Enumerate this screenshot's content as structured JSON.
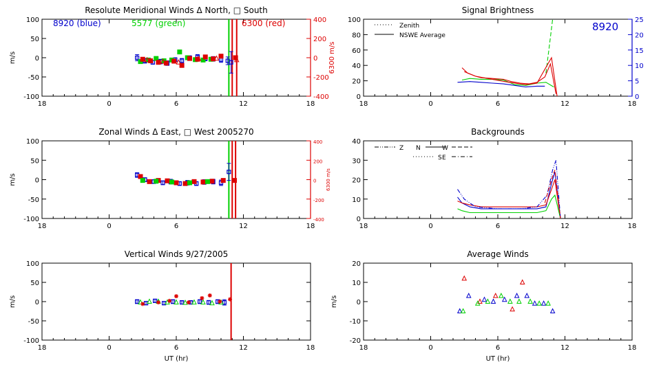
{
  "figure": {
    "colors": {
      "blue": "#0000cc",
      "green": "#00d000",
      "red": "#dd0000",
      "black": "#000000"
    }
  },
  "chart_data": [
    {
      "id": "meridional",
      "type": "scatter",
      "title": "Resolute Meridional Winds Δ North, □ South",
      "xlabel": "",
      "ylabel": "m/s",
      "ylabel_right": "6300 m/s",
      "xlim": [
        18,
        42
      ],
      "x_ticks": [
        18,
        24,
        30,
        36,
        42
      ],
      "x_tick_labels": [
        "18",
        "0",
        "6",
        "12",
        "18"
      ],
      "ylim": [
        -100,
        100
      ],
      "y_ticks": [
        -100,
        -50,
        0,
        50,
        100
      ],
      "y_tick_labels": [
        "-100",
        "-50",
        "0",
        "50",
        "100"
      ],
      "y2lim": [
        -400,
        400
      ],
      "y2_ticks": [
        -400,
        -200,
        0,
        200,
        400
      ],
      "y2_tick_labels": [
        "-400",
        "-200",
        "0",
        "200",
        "400"
      ],
      "annotations": [
        {
          "text": "8920 (blue)",
          "color": "blue"
        },
        {
          "text": "5577 (green)",
          "color": "green"
        },
        {
          "text": "6300 (red)",
          "color": "red"
        }
      ],
      "vlines": [
        {
          "x": 34.7,
          "color": "green"
        },
        {
          "x": 35.0,
          "color": "red"
        },
        {
          "x": 35.4,
          "color": "red"
        }
      ],
      "series": [
        {
          "color": "blue",
          "marker": "errorbar",
          "x": [
            26.5,
            27.2,
            27.9,
            28.6,
            29.2,
            29.9,
            30.5,
            31.2,
            31.9,
            32.6,
            33.3,
            34.0,
            34.6,
            34.9
          ],
          "y": [
            0,
            -8,
            -12,
            -10,
            -14,
            -5,
            -8,
            0,
            2,
            -2,
            -3,
            -5,
            -8,
            -12
          ],
          "err": [
            8,
            6,
            5,
            6,
            6,
            5,
            6,
            5,
            6,
            6,
            6,
            7,
            10,
            28
          ]
        },
        {
          "color": "green",
          "marker": "square",
          "x": [
            26.8,
            27.5,
            28.2,
            28.9,
            29.6,
            30.3,
            31.0,
            31.7,
            32.4,
            33.1
          ],
          "y": [
            -10,
            -6,
            -2,
            -8,
            -6,
            15,
            0,
            -5,
            -6,
            -4
          ]
        },
        {
          "color": "red",
          "marker": "square",
          "x": [
            27.0,
            27.7,
            28.4,
            29.1,
            29.8,
            30.5,
            31.2,
            31.9,
            32.6,
            33.3,
            34.0,
            35.3
          ],
          "y": [
            -4,
            -8,
            -12,
            -14,
            -9,
            -20,
            -2,
            -4,
            2,
            -3,
            4,
            0
          ]
        },
        {
          "color": "red",
          "marker": "triangle",
          "x": [
            27.4,
            28.8,
            30.2,
            32.0,
            33.6,
            35.4
          ],
          "y": [
            -6,
            -10,
            -12,
            -3,
            -2,
            -6
          ]
        }
      ]
    },
    {
      "id": "signal",
      "type": "line",
      "title": "Signal Brightness",
      "xlabel": "",
      "ylabel": "",
      "xlim": [
        18,
        42
      ],
      "x_ticks": [
        18,
        24,
        30,
        36,
        42
      ],
      "x_tick_labels": [
        "18",
        "0",
        "6",
        "12",
        "18"
      ],
      "ylim": [
        0,
        100
      ],
      "y_ticks": [
        0,
        20,
        40,
        60,
        80,
        100
      ],
      "y_tick_labels": [
        "0",
        "20",
        "40",
        "60",
        "80",
        "100"
      ],
      "y2lim": [
        0,
        25
      ],
      "y2_ticks": [
        0,
        5,
        10,
        15,
        20,
        25
      ],
      "y2_tick_labels": [
        "0",
        "5",
        "10",
        "15",
        "20",
        "25"
      ],
      "legend": [
        {
          "label": "Zenith",
          "style": "dotted"
        },
        {
          "label": "NSWE Average",
          "style": "solid"
        }
      ],
      "label_8920": "8920",
      "series": [
        {
          "color": "blue",
          "style": "solid",
          "x": [
            26.4,
            27.5,
            28.5,
            29.5,
            30.5,
            31.5,
            32.5,
            33.5,
            34.2
          ],
          "y": [
            18,
            19,
            18,
            17,
            16,
            14,
            12,
            13,
            13
          ]
        },
        {
          "color": "green",
          "style": "solid",
          "x": [
            26.8,
            27.5,
            28.5,
            29.5,
            30.5,
            31.0,
            31.5,
            32.5,
            33.5,
            34.3,
            35.0
          ],
          "y": [
            21,
            23,
            22,
            22,
            21,
            18,
            15,
            14,
            17,
            18,
            12
          ]
        },
        {
          "color": "green",
          "style": "dashed",
          "x": [
            34.3,
            34.6,
            34.9
          ],
          "y": [
            30,
            65,
            100
          ]
        },
        {
          "color": "red",
          "style": "solid",
          "x": [
            26.8,
            27.3,
            28.0,
            28.5,
            29.5,
            30.5,
            31.2,
            32.0,
            32.8,
            33.5,
            34.2,
            34.7,
            35.2
          ],
          "y": [
            37,
            30,
            26,
            24,
            23,
            22,
            19,
            17,
            16,
            18,
            25,
            42,
            3
          ]
        },
        {
          "color": "red",
          "style": "solid",
          "x": [
            27.0,
            28.0,
            29.5,
            31.0,
            32.5,
            33.5,
            34.4,
            34.8,
            35.3
          ],
          "y": [
            32,
            26,
            22,
            18,
            15,
            17,
            40,
            50,
            0
          ]
        }
      ]
    },
    {
      "id": "zonal",
      "type": "scatter",
      "title": "Zonal Winds Δ East, □ West 2005270",
      "xlabel": "",
      "ylabel": "m/s",
      "ylabel_right": "6300 m/s",
      "xlim": [
        18,
        42
      ],
      "x_ticks": [
        18,
        24,
        30,
        36,
        42
      ],
      "x_tick_labels": [
        "18",
        "0",
        "6",
        "12",
        "18"
      ],
      "ylim": [
        -100,
        100
      ],
      "y_ticks": [
        -100,
        -50,
        0,
        50,
        100
      ],
      "y_tick_labels": [
        "-100",
        "-50",
        "0",
        "50",
        "100"
      ],
      "y2lim": [
        -400,
        400
      ],
      "y2_ticks": [
        -400,
        -200,
        0,
        200,
        400
      ],
      "y2_tick_labels": [
        "-400",
        "-200",
        "0",
        "200",
        "400"
      ],
      "vlines": [
        {
          "x": 34.7,
          "color": "green"
        },
        {
          "x": 35.0,
          "color": "red"
        },
        {
          "x": 35.3,
          "color": "red"
        }
      ],
      "series": [
        {
          "color": "blue",
          "marker": "errorbar",
          "x": [
            26.5,
            27.2,
            28.0,
            28.8,
            29.5,
            30.3,
            31.0,
            31.8,
            32.5,
            33.3,
            34.0,
            34.7
          ],
          "y": [
            12,
            0,
            -5,
            -8,
            -5,
            -10,
            -8,
            -10,
            -6,
            -5,
            -8,
            20
          ],
          "err": [
            6,
            5,
            5,
            5,
            6,
            5,
            6,
            5,
            6,
            6,
            7,
            22
          ]
        },
        {
          "color": "red",
          "marker": "square",
          "x": [
            26.8,
            27.6,
            28.4,
            29.2,
            30.0,
            30.8,
            31.6,
            32.4,
            33.2,
            34.2,
            35.2
          ],
          "y": [
            8,
            -5,
            -2,
            -3,
            -8,
            -10,
            -5,
            -6,
            -4,
            -2,
            -2
          ]
        },
        {
          "color": "green",
          "marker": "square",
          "x": [
            27.0,
            28.2,
            29.6,
            31.2,
            32.8
          ],
          "y": [
            -2,
            -4,
            -6,
            -8,
            -5
          ]
        }
      ]
    },
    {
      "id": "backgrounds",
      "type": "line",
      "title": "Backgrounds",
      "xlabel": "",
      "ylabel": "",
      "xlim": [
        18,
        42
      ],
      "x_ticks": [
        18,
        24,
        30,
        36,
        42
      ],
      "x_tick_labels": [
        "18",
        "0",
        "6",
        "12",
        "18"
      ],
      "ylim": [
        0,
        40
      ],
      "y_ticks": [
        0,
        10,
        20,
        30,
        40
      ],
      "y_tick_labels": [
        "0",
        "10",
        "20",
        "30",
        "40"
      ],
      "legend": [
        {
          "label": "Z",
          "style": "dashdotdot"
        },
        {
          "label": "N",
          "style": "solid"
        },
        {
          "label": "W",
          "style": "dashed"
        },
        {
          "label": "S",
          "style": "dotted"
        },
        {
          "label": "E",
          "style": "dashdot"
        }
      ],
      "series": [
        {
          "color": "blue",
          "style": "solid",
          "x": [
            26.4,
            26.8,
            27.5,
            28.5,
            29.5,
            30.5,
            31.5,
            32.5,
            33.5,
            34.3,
            34.8,
            35.1,
            35.6
          ],
          "y": [
            11,
            8,
            6,
            5,
            5,
            5,
            5,
            5,
            5,
            6,
            18,
            24,
            0
          ]
        },
        {
          "color": "red",
          "style": "solid",
          "x": [
            26.4,
            26.8,
            27.5,
            28.5,
            29.5,
            30.5,
            31.5,
            32.5,
            33.5,
            34.3,
            34.8,
            35.1,
            35.6
          ],
          "y": [
            9,
            8,
            7,
            6,
            6,
            6,
            6,
            6,
            6,
            7,
            15,
            20,
            0
          ]
        },
        {
          "color": "green",
          "style": "solid",
          "x": [
            26.4,
            26.8,
            27.5,
            28.5,
            29.5,
            30.5,
            31.5,
            32.5,
            33.5,
            34.3,
            34.8,
            35.1,
            35.6
          ],
          "y": [
            5,
            4,
            3,
            3,
            3,
            3,
            3,
            3,
            3,
            4,
            10,
            12,
            0
          ]
        },
        {
          "color": "blue",
          "style": "dashdotdot",
          "x": [
            26.4,
            27.0,
            28.0,
            30.0,
            32.0,
            33.5,
            34.4,
            34.9,
            35.2,
            35.6
          ],
          "y": [
            15,
            10,
            6,
            5,
            5,
            6,
            12,
            25,
            30,
            0
          ]
        },
        {
          "color": "red",
          "style": "dashed",
          "x": [
            34.2,
            34.8,
            35.1,
            35.6
          ],
          "y": [
            8,
            20,
            25,
            0
          ]
        }
      ]
    },
    {
      "id": "vertical",
      "type": "scatter",
      "title": "Vertical Winds 9/27/2005",
      "xlabel": "UT (hr)",
      "ylabel": "m/s",
      "xlim": [
        18,
        42
      ],
      "x_ticks": [
        18,
        24,
        30,
        36,
        42
      ],
      "x_tick_labels": [
        "18",
        "0",
        "6",
        "12",
        "18"
      ],
      "ylim": [
        -100,
        100
      ],
      "y_ticks": [
        -100,
        -50,
        0,
        50,
        100
      ],
      "y_tick_labels": [
        "-100",
        "-50",
        "0",
        "50",
        "100"
      ],
      "vlines": [
        {
          "x": 34.9,
          "color": "red"
        }
      ],
      "series": [
        {
          "color": "blue",
          "marker": "errorbar",
          "x": [
            26.5,
            27.3,
            28.1,
            28.9,
            29.7,
            30.5,
            31.3,
            32.1,
            32.9,
            33.7,
            34.3
          ],
          "y": [
            0,
            -4,
            2,
            -4,
            0,
            -2,
            -2,
            0,
            -2,
            0,
            -2
          ],
          "err": [
            5,
            4,
            4,
            4,
            5,
            4,
            4,
            5,
            5,
            5,
            7
          ]
        },
        {
          "color": "green",
          "marker": "triangle",
          "x": [
            26.8,
            27.6,
            28.4,
            29.2,
            30.0,
            30.8,
            31.6,
            32.4,
            33.2,
            34.0
          ],
          "y": [
            -2,
            0,
            0,
            -2,
            -2,
            -3,
            -2,
            -2,
            -4,
            -2
          ]
        },
        {
          "color": "red",
          "marker": "asterisk",
          "x": [
            27.0,
            28.4,
            29.4,
            30.0,
            31.1,
            32.3,
            33.0,
            33.9,
            34.8
          ],
          "y": [
            -6,
            -2,
            2,
            14,
            -2,
            9,
            16,
            0,
            6
          ]
        }
      ]
    },
    {
      "id": "average",
      "type": "scatter",
      "title": "Average Winds",
      "xlabel": "UT (hr)",
      "ylabel": "m/s",
      "xlim": [
        18,
        42
      ],
      "x_ticks": [
        18,
        24,
        30,
        36,
        42
      ],
      "x_tick_labels": [
        "18",
        "0",
        "6",
        "12",
        "18"
      ],
      "ylim": [
        -20,
        20
      ],
      "y_ticks": [
        -20,
        -10,
        0,
        10,
        20
      ],
      "y_tick_labels": [
        "-20",
        "-10",
        "0",
        "10",
        "20"
      ],
      "series": [
        {
          "color": "red",
          "marker": "triangle",
          "x": [
            27.0,
            28.4,
            29.8,
            31.3,
            32.2
          ],
          "y": [
            12,
            0,
            3,
            -4,
            10
          ]
        },
        {
          "color": "blue",
          "marker": "triangle",
          "x": [
            26.6,
            27.4,
            28.8,
            29.6,
            30.6,
            31.7,
            32.6,
            33.3,
            34.1,
            34.9
          ],
          "y": [
            -5,
            3,
            1,
            0,
            1,
            3,
            3,
            -1,
            -1,
            -5
          ]
        },
        {
          "color": "green",
          "marker": "triangle",
          "x": [
            26.9,
            28.2,
            29.1,
            30.3,
            31.1,
            31.9,
            32.9,
            33.7,
            34.5
          ],
          "y": [
            -5,
            -1,
            0,
            3,
            0,
            0,
            0,
            -1,
            -1
          ]
        }
      ]
    }
  ]
}
